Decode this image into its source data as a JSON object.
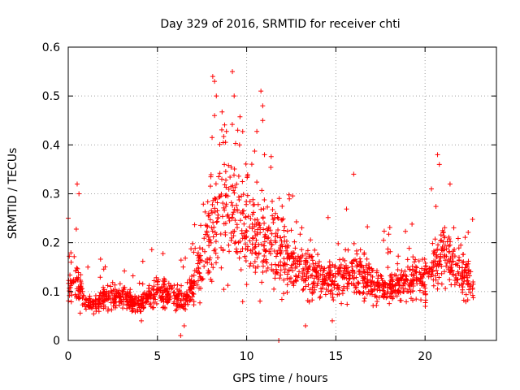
{
  "chart_data": {
    "type": "scatter",
    "title": "Day 329 of 2016, SRMTID for receiver chti",
    "xlabel": "GPS time / hours",
    "ylabel": "SRMTID / TECUs",
    "xlim": [
      0,
      24
    ],
    "ylim": [
      0,
      0.6
    ],
    "xticks": [
      0,
      5,
      10,
      15,
      20
    ],
    "yticks": [
      0,
      0.1,
      0.2,
      0.3,
      0.4,
      0.5,
      0.6
    ],
    "xtick_labels": [
      "0",
      "5",
      "10",
      "15",
      "20"
    ],
    "ytick_labels": [
      "0",
      "0.1",
      "0.2",
      "0.3",
      "0.4",
      "0.5",
      "0.6"
    ],
    "grid": true,
    "marker": "plus",
    "color": "#ff0000",
    "x_range_observed": [
      0,
      22.7
    ],
    "trend": [
      [
        0.0,
        0.1
      ],
      [
        0.5,
        0.12
      ],
      [
        1.0,
        0.08
      ],
      [
        1.5,
        0.07
      ],
      [
        2.0,
        0.09
      ],
      [
        2.5,
        0.09
      ],
      [
        3.0,
        0.09
      ],
      [
        3.5,
        0.08
      ],
      [
        4.0,
        0.07
      ],
      [
        4.5,
        0.09
      ],
      [
        5.0,
        0.095
      ],
      [
        5.5,
        0.1
      ],
      [
        6.0,
        0.09
      ],
      [
        6.5,
        0.08
      ],
      [
        7.0,
        0.11
      ],
      [
        7.5,
        0.17
      ],
      [
        8.0,
        0.22
      ],
      [
        8.5,
        0.27
      ],
      [
        9.0,
        0.26
      ],
      [
        9.5,
        0.25
      ],
      [
        10.0,
        0.23
      ],
      [
        10.5,
        0.22
      ],
      [
        11.0,
        0.2
      ],
      [
        11.5,
        0.19
      ],
      [
        12.0,
        0.17
      ],
      [
        12.5,
        0.16
      ],
      [
        13.0,
        0.15
      ],
      [
        13.5,
        0.14
      ],
      [
        14.0,
        0.13
      ],
      [
        14.5,
        0.12
      ],
      [
        15.0,
        0.12
      ],
      [
        15.5,
        0.13
      ],
      [
        16.0,
        0.14
      ],
      [
        16.5,
        0.13
      ],
      [
        17.0,
        0.12
      ],
      [
        17.5,
        0.11
      ],
      [
        18.0,
        0.11
      ],
      [
        18.5,
        0.12
      ],
      [
        19.0,
        0.12
      ],
      [
        19.5,
        0.13
      ],
      [
        20.0,
        0.12
      ],
      [
        20.5,
        0.16
      ],
      [
        21.0,
        0.18
      ],
      [
        21.5,
        0.16
      ],
      [
        22.0,
        0.14
      ],
      [
        22.7,
        0.12
      ]
    ],
    "notable_points": [
      [
        0.0,
        0.25
      ],
      [
        0.5,
        0.32
      ],
      [
        0.6,
        0.3
      ],
      [
        1.1,
        0.15
      ],
      [
        4.1,
        0.04
      ],
      [
        6.3,
        0.01
      ],
      [
        6.5,
        0.03
      ],
      [
        8.1,
        0.54
      ],
      [
        8.2,
        0.53
      ],
      [
        8.3,
        0.5
      ],
      [
        8.2,
        0.46
      ],
      [
        9.2,
        0.55
      ],
      [
        9.3,
        0.5
      ],
      [
        9.5,
        0.43
      ],
      [
        9.6,
        0.4
      ],
      [
        10.8,
        0.51
      ],
      [
        10.9,
        0.48
      ],
      [
        10.9,
        0.45
      ],
      [
        11.0,
        0.38
      ],
      [
        11.8,
        0.0
      ],
      [
        13.3,
        0.03
      ],
      [
        14.8,
        0.04
      ],
      [
        16.0,
        0.34
      ],
      [
        20.7,
        0.38
      ],
      [
        20.8,
        0.36
      ],
      [
        21.4,
        0.32
      ]
    ]
  }
}
